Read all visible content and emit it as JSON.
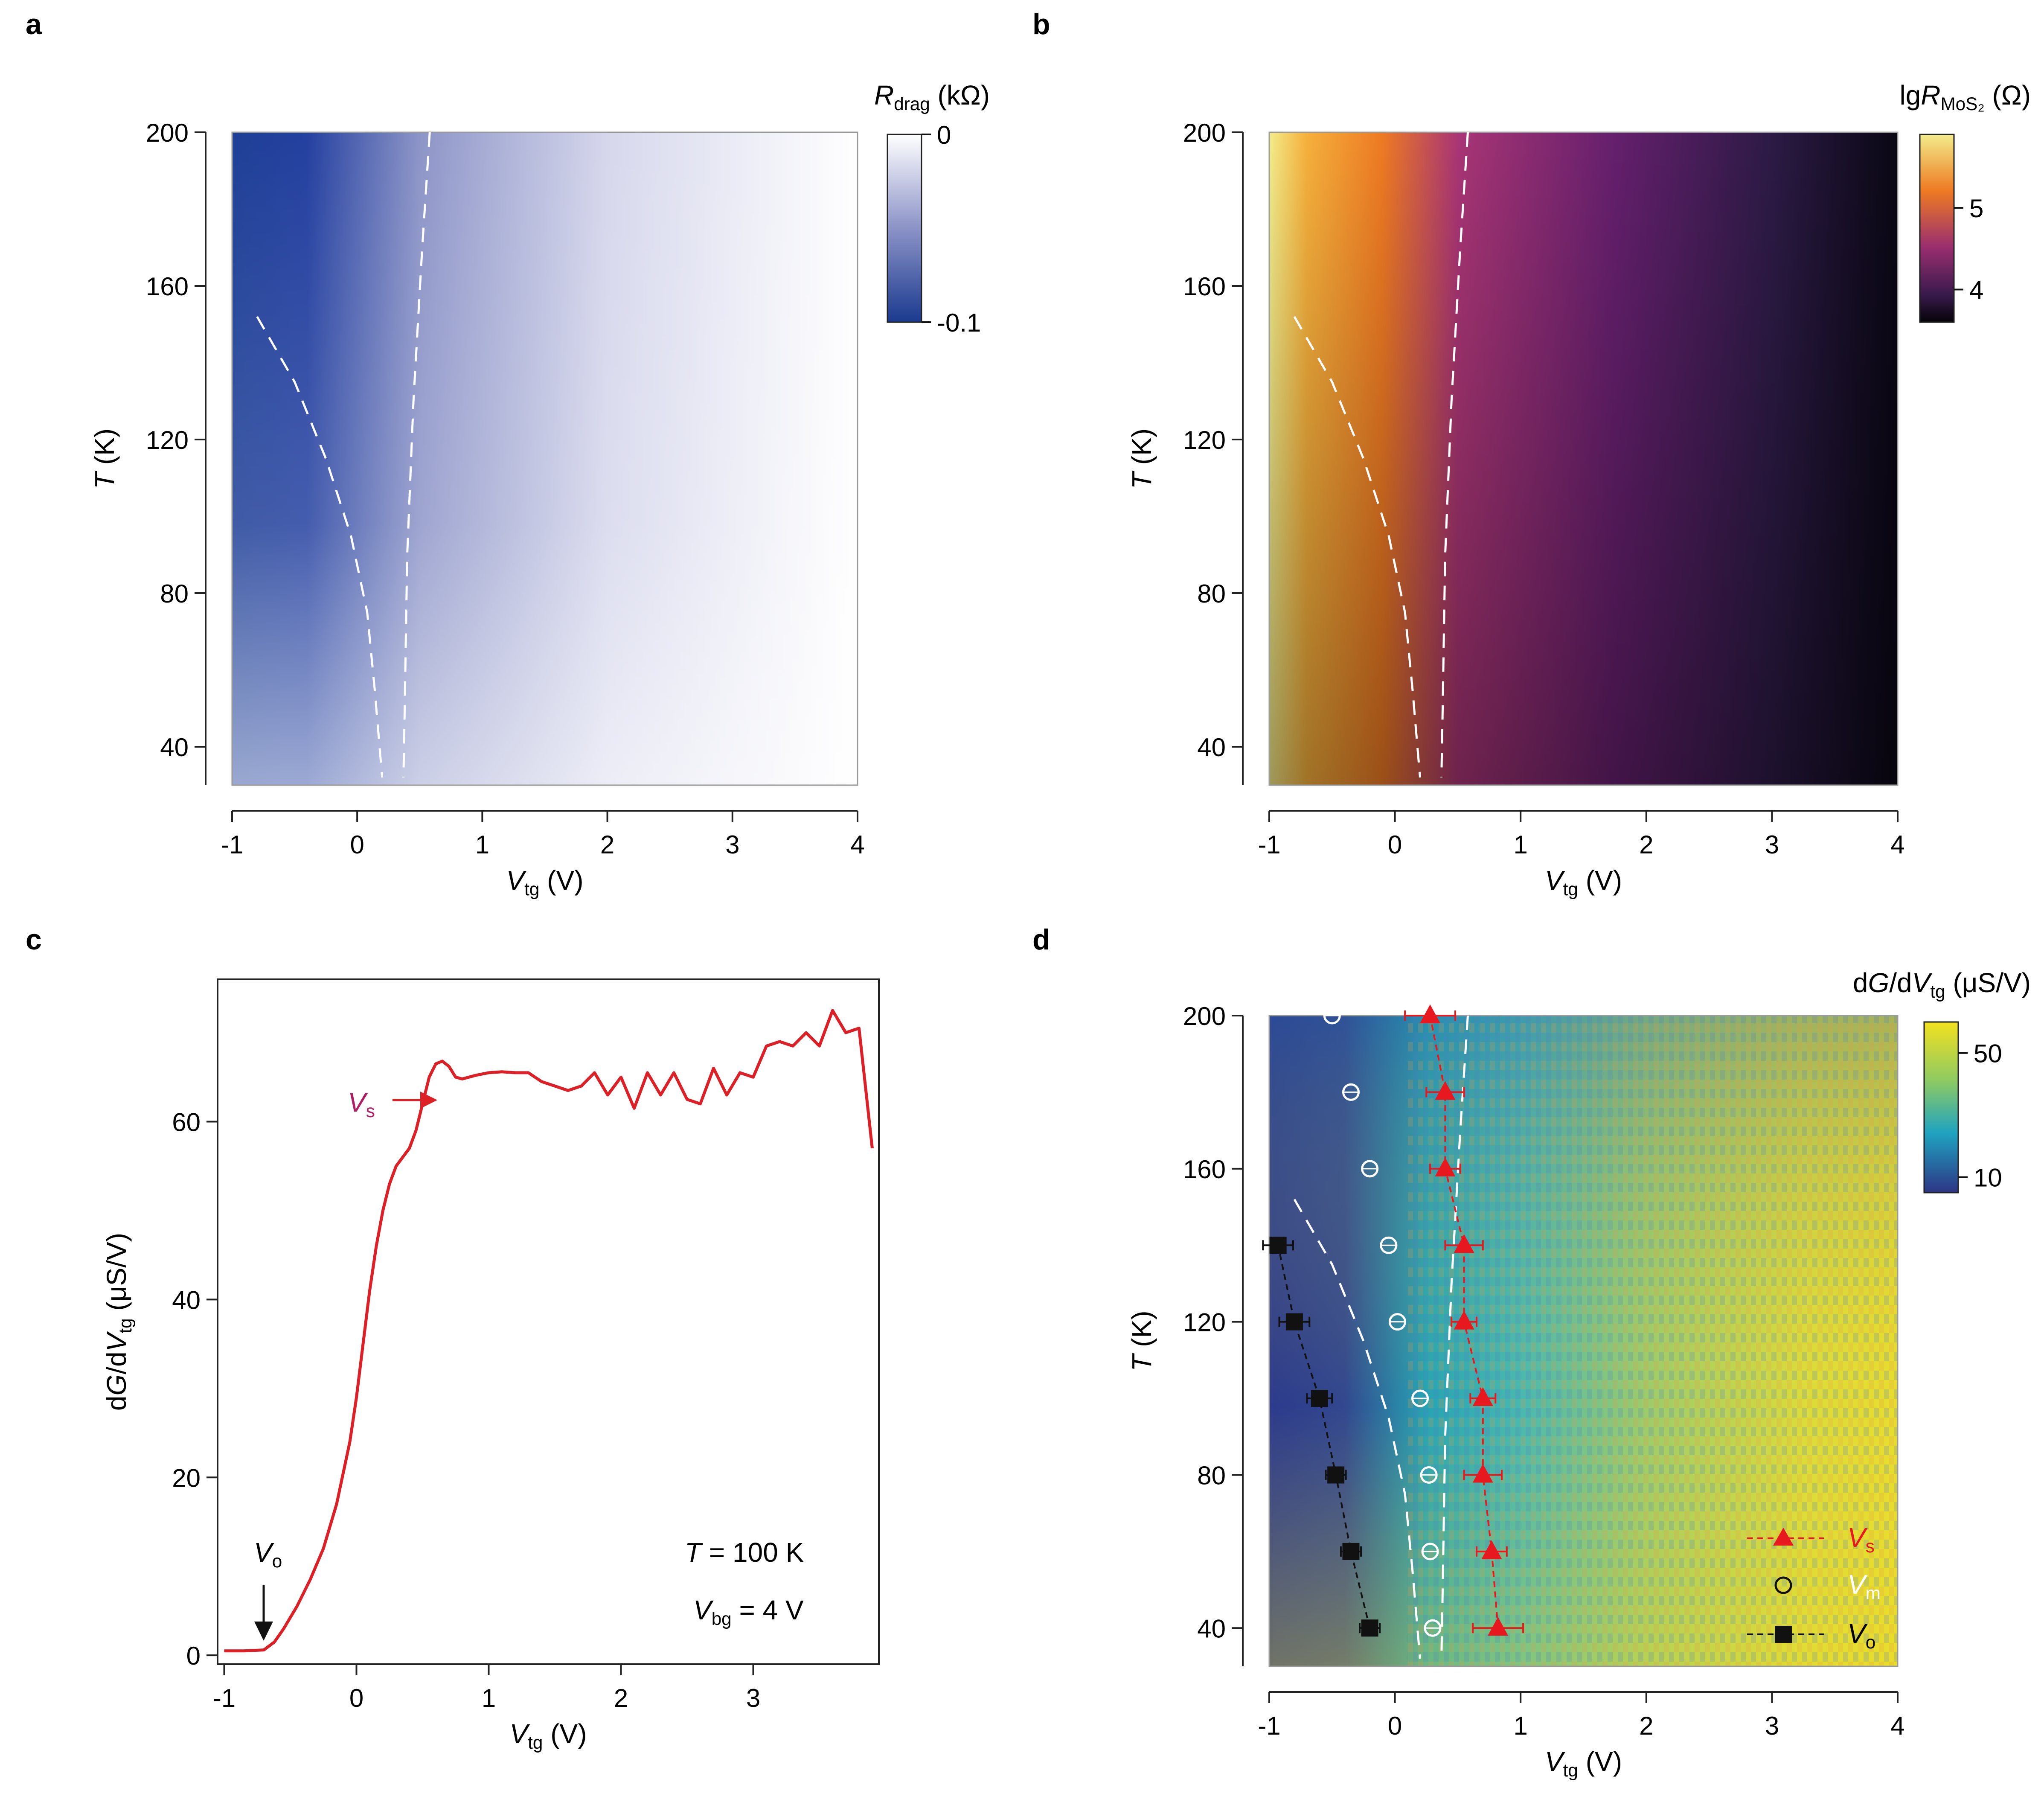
{
  "colors": {
    "drag_min": "#1e3f96",
    "drag_max": "#ffffff",
    "curve": "#dd1f26",
    "vs_label": "#b01e63",
    "vs_marker": "#e8191e",
    "vo_marker": "#111111",
    "vm_marker": "#ffffff"
  },
  "chart_data": [
    {
      "panel": "a",
      "type": "heatmap",
      "x": {
        "var": "V",
        "sub": "tg",
        "unit": "(V)",
        "range": [
          -1,
          4
        ],
        "ticks": [
          "-1",
          "0",
          "1",
          "2",
          "3",
          "4"
        ]
      },
      "y": {
        "var": "T",
        "unit": "(K)",
        "range": [
          30,
          200
        ],
        "ticks": [
          "40",
          "80",
          "120",
          "160",
          "200"
        ]
      },
      "colorbar": {
        "var": "R",
        "sub": "drag",
        "unit": "(kΩ)",
        "ticks": [
          "0",
          "-0.1"
        ],
        "range": [
          -0.1,
          0
        ]
      },
      "dashed_lines": [
        {
          "points": [
            [
              -0.8,
              152
            ],
            [
              -0.5,
              135
            ],
            [
              -0.25,
              115
            ],
            [
              -0.05,
              95
            ],
            [
              0.08,
              75
            ],
            [
              0.14,
              55
            ],
            [
              0.2,
              32
            ]
          ]
        },
        {
          "points": [
            [
              0.58,
              200
            ],
            [
              0.52,
              170
            ],
            [
              0.45,
              130
            ],
            [
              0.4,
              90
            ],
            [
              0.38,
              50
            ],
            [
              0.37,
              32
            ]
          ]
        }
      ]
    },
    {
      "panel": "b",
      "type": "heatmap",
      "x": {
        "var": "V",
        "sub": "tg",
        "unit": "(V)",
        "range": [
          -1,
          4
        ],
        "ticks": [
          "-1",
          "0",
          "1",
          "2",
          "3",
          "4"
        ]
      },
      "y": {
        "var": "T",
        "unit": "(K)",
        "range": [
          30,
          200
        ],
        "ticks": [
          "40",
          "80",
          "120",
          "160",
          "200"
        ]
      },
      "colorbar": {
        "prefix": "lg",
        "var": "R",
        "sub": "MoS₂",
        "unit": "(Ω)",
        "ticks": [
          "5",
          "4"
        ],
        "range": [
          3.6,
          5.9
        ]
      },
      "dashed_lines": [
        {
          "points": [
            [
              -0.8,
              152
            ],
            [
              -0.5,
              135
            ],
            [
              -0.25,
              115
            ],
            [
              -0.05,
              95
            ],
            [
              0.08,
              75
            ],
            [
              0.14,
              55
            ],
            [
              0.2,
              32
            ]
          ]
        },
        {
          "points": [
            [
              0.58,
              200
            ],
            [
              0.52,
              170
            ],
            [
              0.45,
              130
            ],
            [
              0.4,
              90
            ],
            [
              0.38,
              50
            ],
            [
              0.37,
              32
            ]
          ]
        }
      ]
    },
    {
      "panel": "c",
      "type": "line",
      "x": {
        "var": "V",
        "sub": "tg",
        "unit": "(V)",
        "range": [
          -1.05,
          3.95
        ],
        "ticks": [
          "-1",
          "0",
          "1",
          "2",
          "3"
        ]
      },
      "y": {
        "label": "dG/dV",
        "sub": "tg",
        "unit": "(μS/V)",
        "range": [
          -1,
          76
        ],
        "ticks": [
          "0",
          "20",
          "40",
          "60"
        ]
      },
      "series": [
        {
          "x": [
            -1.0,
            -0.85,
            -0.7,
            -0.62,
            -0.55,
            -0.45,
            -0.35,
            -0.25,
            -0.15,
            -0.05,
            0.0,
            0.05,
            0.1,
            0.15,
            0.2,
            0.25,
            0.3,
            0.35,
            0.4,
            0.45,
            0.5,
            0.55,
            0.6,
            0.65,
            0.7,
            0.75,
            0.8,
            0.9,
            1.0,
            1.1,
            1.2,
            1.3,
            1.4,
            1.5,
            1.6,
            1.7,
            1.8,
            1.9,
            2.0,
            2.1,
            2.2,
            2.3,
            2.4,
            2.5,
            2.6,
            2.7,
            2.8,
            2.9,
            3.0,
            3.1,
            3.2,
            3.3,
            3.4,
            3.5,
            3.6,
            3.7,
            3.8,
            3.9
          ],
          "y": [
            0.5,
            0.5,
            0.6,
            1.5,
            3,
            5.5,
            8.5,
            12,
            17,
            24,
            29,
            35,
            41,
            46,
            50,
            53,
            55,
            56,
            57,
            59,
            62,
            65,
            66.5,
            66.8,
            66.2,
            65,
            64.8,
            65.2,
            65.5,
            65.6,
            65.5,
            65.5,
            64.5,
            64,
            63.5,
            64,
            65.5,
            63,
            65,
            61.5,
            65.5,
            63,
            65.5,
            62.5,
            62,
            66,
            63,
            65.5,
            65,
            68.5,
            69,
            68.5,
            70,
            68.5,
            72.5,
            70,
            70.5,
            57
          ]
        }
      ],
      "annotations": [
        {
          "var": "V",
          "sub": "s"
        },
        {
          "var": "V",
          "sub": "o"
        },
        {
          "var": "T",
          "text": " = 100 K"
        },
        {
          "var": "V",
          "sub": "bg",
          "text": " = 4 V"
        }
      ]
    },
    {
      "panel": "d",
      "type": "heatmap",
      "x": {
        "var": "V",
        "sub": "tg",
        "unit": "(V)",
        "range": [
          -1,
          4
        ],
        "ticks": [
          "-1",
          "0",
          "1",
          "2",
          "3",
          "4"
        ]
      },
      "y": {
        "var": "T",
        "unit": "(K)",
        "range": [
          30,
          200
        ],
        "ticks": [
          "40",
          "80",
          "120",
          "160",
          "200"
        ]
      },
      "colorbar": {
        "label": "dG/dV",
        "sub": "tg",
        "unit": "(μS/V)",
        "ticks": [
          "50",
          "10"
        ],
        "range": [
          5,
          60
        ]
      },
      "dashed_lines": [
        {
          "points": [
            [
              -0.8,
              152
            ],
            [
              -0.5,
              135
            ],
            [
              -0.25,
              115
            ],
            [
              -0.05,
              95
            ],
            [
              0.08,
              75
            ],
            [
              0.14,
              55
            ],
            [
              0.2,
              32
            ]
          ]
        },
        {
          "points": [
            [
              0.58,
              200
            ],
            [
              0.52,
              170
            ],
            [
              0.45,
              130
            ],
            [
              0.4,
              90
            ],
            [
              0.38,
              50
            ],
            [
              0.37,
              32
            ]
          ]
        }
      ],
      "points": [
        {
          "name": "V_s",
          "marker": "triangle",
          "x": [
            0.82,
            0.77,
            0.7,
            0.7,
            0.55,
            0.55,
            0.4,
            0.4,
            0.28
          ],
          "xerr": [
            0.2,
            0.12,
            0.15,
            0.1,
            0.1,
            0.15,
            0.12,
            0.15,
            0.2
          ],
          "y": [
            40,
            60,
            80,
            100,
            120,
            140,
            160,
            180,
            200
          ]
        },
        {
          "name": "V_m",
          "marker": "circle",
          "x": [
            0.3,
            0.28,
            0.27,
            0.2,
            0.02,
            -0.05,
            -0.2,
            -0.35,
            -0.5
          ],
          "y": [
            40,
            60,
            80,
            100,
            120,
            140,
            160,
            180,
            200
          ]
        },
        {
          "name": "V_o",
          "marker": "square",
          "x": [
            -0.2,
            -0.35,
            -0.47,
            -0.6,
            -0.8,
            -0.93
          ],
          "xerr": [
            0.08,
            0.08,
            0.08,
            0.1,
            0.12,
            0.12
          ],
          "y": [
            40,
            60,
            80,
            100,
            120,
            140
          ]
        }
      ],
      "legend": [
        {
          "var": "V",
          "sub": "s"
        },
        {
          "var": "V",
          "sub": "m"
        },
        {
          "var": "V",
          "sub": "o"
        }
      ]
    }
  ]
}
